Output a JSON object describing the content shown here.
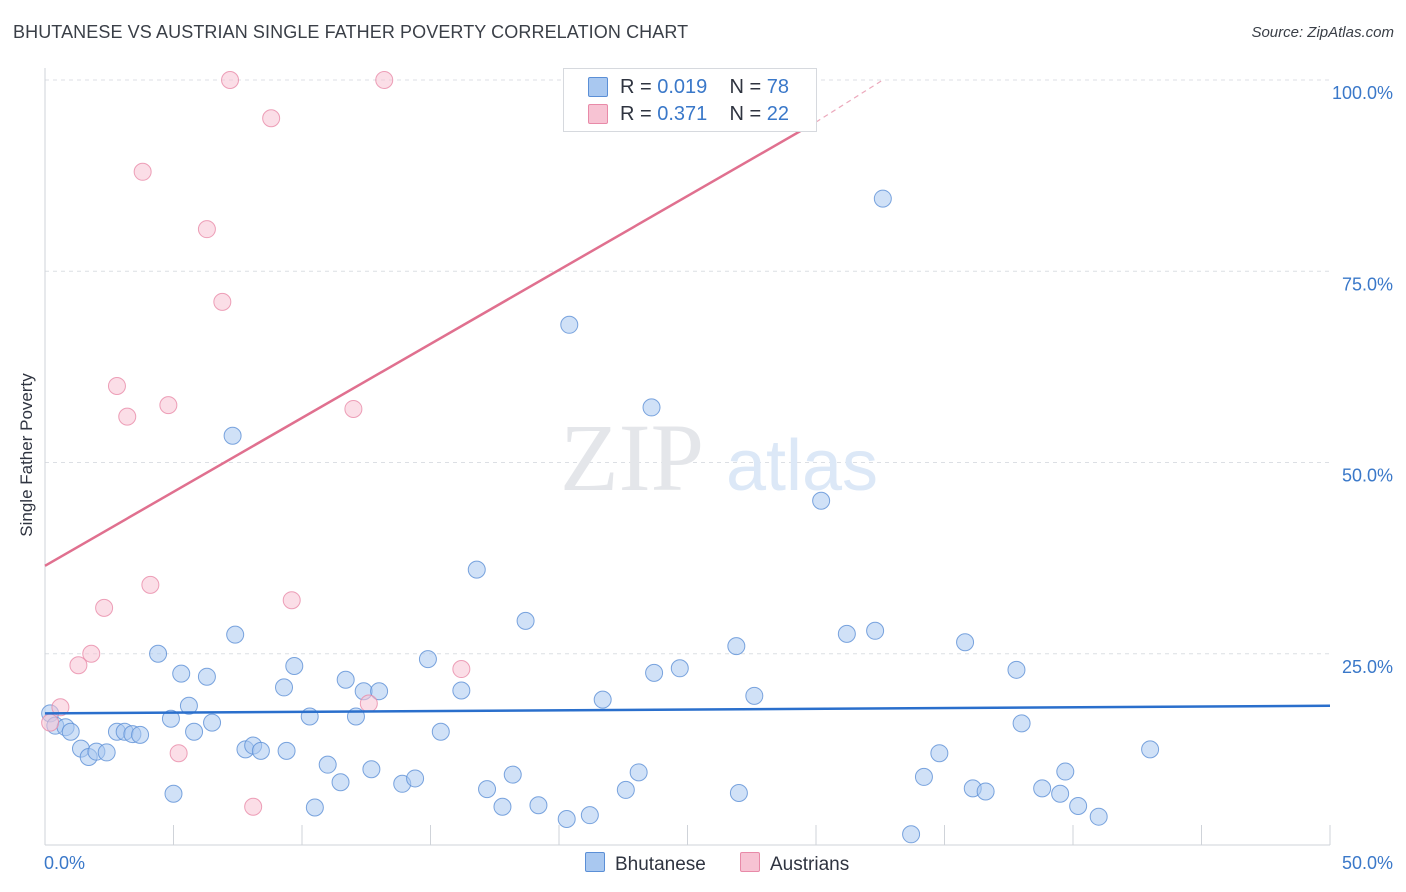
{
  "title": "BHUTANESE VS AUSTRIAN SINGLE FATHER POVERTY CORRELATION CHART",
  "source": "Source: ZipAtlas.com",
  "watermark": {
    "zip": "ZIP",
    "atlas": "atlas"
  },
  "colors": {
    "bhutanese_fill": "#a9c8f0",
    "bhutanese_stroke": "#5b8fd6",
    "bhutanese_line": "#2a6fcc",
    "austrians_fill": "#f7c3d3",
    "austrians_stroke": "#e88aa8",
    "austrians_line": "#e0708f",
    "axis_label": "#3a78c9",
    "grid": "#dcdfe4"
  },
  "legend": {
    "rows": [
      {
        "r_label": "R =",
        "r_value": "0.019",
        "n_label": "N =",
        "n_value": "78"
      },
      {
        "r_label": "R =",
        "r_value": "0.371",
        "n_label": "N =",
        "n_value": "22"
      }
    ]
  },
  "bottom_legend": [
    "Bhutanese",
    "Austrians"
  ],
  "chart_data": {
    "type": "scatter",
    "title": "BHUTANESE VS AUSTRIAN SINGLE FATHER POVERTY CORRELATION CHART",
    "xlabel": "",
    "ylabel": "Single Father Poverty",
    "xlim": [
      0,
      50
    ],
    "ylim": [
      0,
      105
    ],
    "x_tick_labels": [
      "0.0%",
      "50.0%"
    ],
    "y_ticks": [
      25,
      50,
      75,
      100
    ],
    "y_tick_labels": [
      "25.0%",
      "50.0%",
      "75.0%",
      "100.0%"
    ],
    "grid": true,
    "legend_position": "top-center",
    "series": [
      {
        "name": "Bhutanese",
        "trend": {
          "x": [
            0,
            50
          ],
          "y": [
            17.2,
            18.2
          ]
        },
        "points": [
          [
            0.2,
            17.2
          ],
          [
            0.4,
            15.6
          ],
          [
            0.8,
            15.4
          ],
          [
            1.0,
            14.8
          ],
          [
            1.4,
            12.6
          ],
          [
            1.7,
            11.5
          ],
          [
            2.0,
            12.2
          ],
          [
            2.4,
            12.1
          ],
          [
            2.8,
            14.8
          ],
          [
            3.1,
            14.8
          ],
          [
            3.4,
            14.5
          ],
          [
            3.7,
            14.4
          ],
          [
            4.4,
            25.0
          ],
          [
            4.9,
            16.5
          ],
          [
            5.0,
            6.7
          ],
          [
            5.3,
            22.4
          ],
          [
            5.6,
            18.2
          ],
          [
            5.8,
            14.8
          ],
          [
            6.3,
            22.0
          ],
          [
            6.5,
            16.0
          ],
          [
            7.3,
            53.5
          ],
          [
            7.4,
            27.5
          ],
          [
            7.8,
            12.5
          ],
          [
            8.1,
            13.0
          ],
          [
            8.4,
            12.3
          ],
          [
            9.3,
            20.6
          ],
          [
            9.4,
            12.3
          ],
          [
            9.7,
            23.4
          ],
          [
            10.3,
            16.8
          ],
          [
            10.5,
            4.9
          ],
          [
            11.0,
            10.5
          ],
          [
            11.5,
            8.2
          ],
          [
            11.7,
            21.6
          ],
          [
            12.1,
            16.8
          ],
          [
            12.4,
            20.1
          ],
          [
            12.7,
            9.9
          ],
          [
            13.0,
            20.1
          ],
          [
            13.9,
            8.0
          ],
          [
            14.4,
            8.7
          ],
          [
            14.9,
            24.3
          ],
          [
            15.4,
            14.8
          ],
          [
            16.2,
            20.2
          ],
          [
            16.8,
            36.0
          ],
          [
            17.2,
            7.3
          ],
          [
            17.8,
            5.0
          ],
          [
            18.2,
            9.2
          ],
          [
            18.7,
            29.3
          ],
          [
            19.2,
            5.2
          ],
          [
            20.3,
            3.4
          ],
          [
            21.2,
            3.9
          ],
          [
            21.7,
            19.0
          ],
          [
            22.6,
            7.2
          ],
          [
            23.1,
            9.5
          ],
          [
            23.6,
            57.2
          ],
          [
            23.7,
            22.5
          ],
          [
            24.7,
            23.1
          ],
          [
            26.9,
            26.0
          ],
          [
            27.0,
            6.8
          ],
          [
            27.6,
            19.5
          ],
          [
            30.2,
            45.0
          ],
          [
            31.2,
            27.6
          ],
          [
            32.3,
            28.0
          ],
          [
            32.6,
            84.5
          ],
          [
            33.7,
            1.4
          ],
          [
            34.2,
            8.9
          ],
          [
            34.8,
            12.0
          ],
          [
            35.8,
            26.5
          ],
          [
            36.1,
            7.4
          ],
          [
            36.6,
            7.0
          ],
          [
            37.8,
            22.9
          ],
          [
            38.0,
            15.9
          ],
          [
            38.8,
            7.4
          ],
          [
            39.5,
            6.7
          ],
          [
            39.7,
            9.6
          ],
          [
            40.2,
            5.1
          ],
          [
            41.0,
            3.7
          ],
          [
            43.0,
            12.5
          ],
          [
            20.4,
            68.0
          ]
        ]
      },
      {
        "name": "Austrians",
        "trend": {
          "x": [
            0,
            30
          ],
          "y": [
            36.5,
            94.5
          ]
        },
        "trend_dashed": {
          "x": [
            30,
            32.6
          ],
          "y": [
            94.5,
            100.0
          ]
        },
        "points": [
          [
            0.2,
            16.0
          ],
          [
            0.6,
            18.0
          ],
          [
            1.3,
            23.5
          ],
          [
            1.8,
            25.0
          ],
          [
            2.3,
            31.0
          ],
          [
            2.8,
            60.0
          ],
          [
            3.2,
            56.0
          ],
          [
            3.8,
            88.0
          ],
          [
            4.1,
            34.0
          ],
          [
            4.8,
            57.5
          ],
          [
            5.2,
            12.0
          ],
          [
            6.3,
            80.5
          ],
          [
            6.9,
            71.0
          ],
          [
            7.2,
            100.0
          ],
          [
            8.1,
            5.0
          ],
          [
            8.8,
            95.0
          ],
          [
            9.6,
            32.0
          ],
          [
            12.0,
            57.0
          ],
          [
            12.6,
            18.5
          ],
          [
            13.2,
            100.0
          ],
          [
            16.2,
            23.0
          ],
          [
            26.1,
            100.0
          ]
        ]
      }
    ]
  }
}
